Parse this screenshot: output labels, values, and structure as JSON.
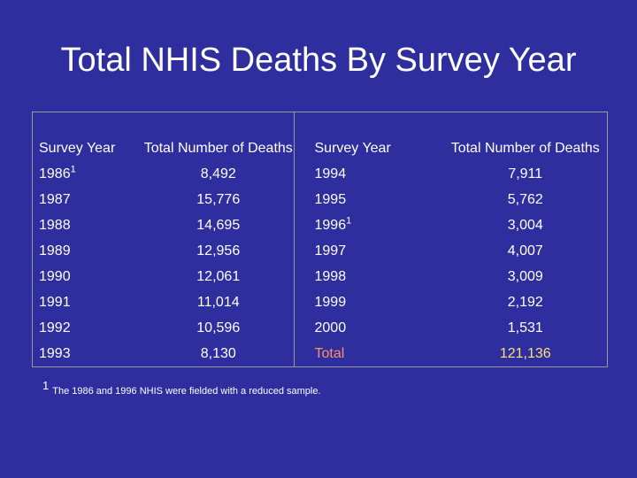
{
  "title": "Total NHIS Deaths By Survey Year",
  "table": {
    "headers": {
      "left_year": "Survey Year",
      "left_deaths": "Total Number of Deaths",
      "right_year": "Survey Year",
      "right_deaths": "Total Number of Deaths"
    },
    "rows": [
      {
        "left_year": "1986",
        "left_sup": "1",
        "left_deaths": "8,492",
        "right_year": "1994",
        "right_sup": "",
        "right_deaths": "7,911"
      },
      {
        "left_year": "1987",
        "left_sup": "",
        "left_deaths": "15,776",
        "right_year": "1995",
        "right_sup": "",
        "right_deaths": "5,762"
      },
      {
        "left_year": "1988",
        "left_sup": "",
        "left_deaths": "14,695",
        "right_year": "1996",
        "right_sup": "1",
        "right_deaths": "3,004"
      },
      {
        "left_year": "1989",
        "left_sup": "",
        "left_deaths": "12,956",
        "right_year": "1997",
        "right_sup": "",
        "right_deaths": "4,007"
      },
      {
        "left_year": "1990",
        "left_sup": "",
        "left_deaths": "12,061",
        "right_year": "1998",
        "right_sup": "",
        "right_deaths": "3,009"
      },
      {
        "left_year": "1991",
        "left_sup": "",
        "left_deaths": "11,014",
        "right_year": "1999",
        "right_sup": "",
        "right_deaths": "2,192"
      },
      {
        "left_year": "1992",
        "left_sup": "",
        "left_deaths": "10,596",
        "right_year": "2000",
        "right_sup": "",
        "right_deaths": "1,531"
      },
      {
        "left_year": "1993",
        "left_sup": "",
        "left_deaths": "8,130",
        "right_year": "Total",
        "right_sup": "",
        "right_deaths": "121,136"
      }
    ]
  },
  "footnote": {
    "marker": "1",
    "text": "The 1986 and 1996 NHIS were fielded with a reduced sample."
  },
  "colors": {
    "background": "#2e2e9e",
    "text": "#ffffff",
    "total_label": "#ff8f6b",
    "total_value": "#ffe07a",
    "grid": "#9a9a9a"
  }
}
